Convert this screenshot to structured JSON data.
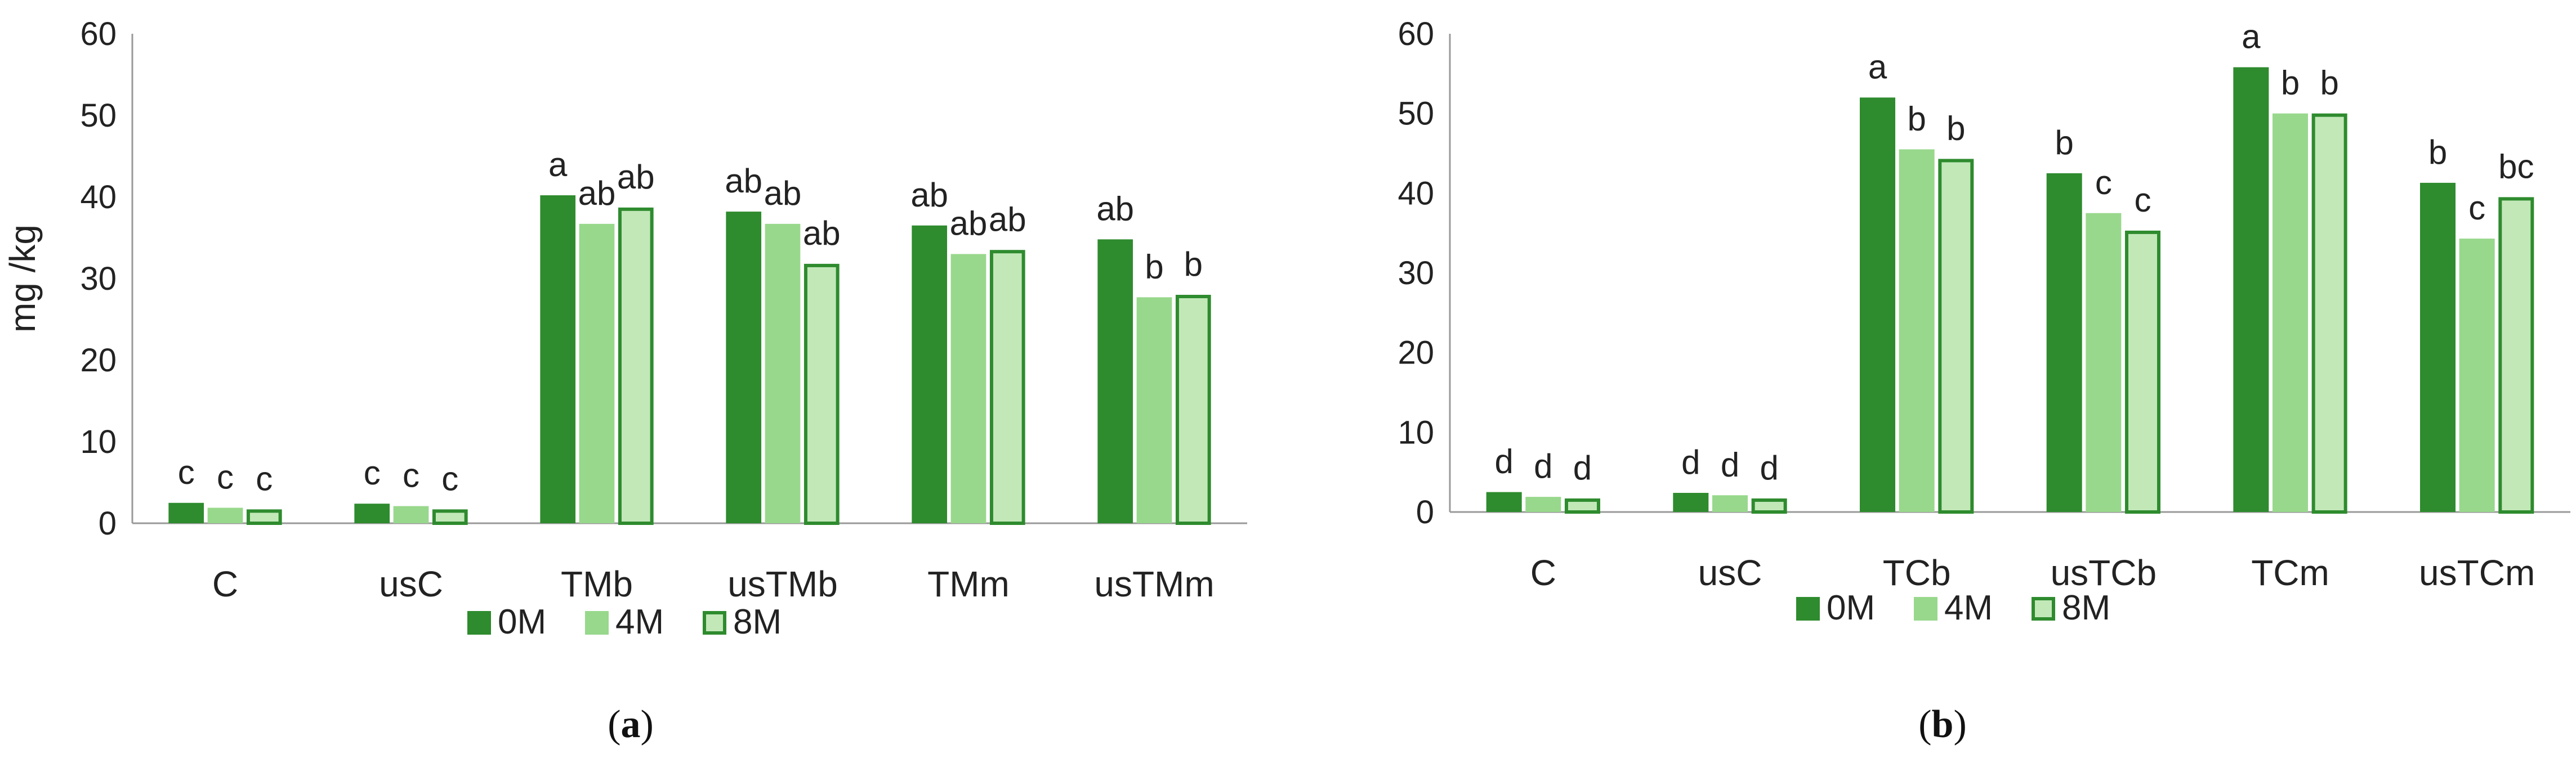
{
  "figure": {
    "captions": [
      "a",
      "b"
    ]
  },
  "legend": {
    "entries": [
      "0M",
      "4M",
      "8M"
    ]
  },
  "colors": {
    "series_0M": "#2e8b2e",
    "series_4M": "#98d88c",
    "series_8M_fill": "#c2e8b8",
    "series_8M_stroke": "#2e8b2e",
    "axis": "#9a9a9a",
    "text": "#222222"
  },
  "chart_data": [
    {
      "type": "bar",
      "panel": "a",
      "ylabel": "mg /kg",
      "xlabel": "",
      "ylim": [
        0,
        60
      ],
      "yticks": [
        0,
        10,
        20,
        30,
        40,
        50,
        60
      ],
      "grid": false,
      "legend_position": "bottom",
      "categories": [
        "C",
        "usC",
        "TMb",
        "usTMb",
        "TMm",
        "usTMm"
      ],
      "series": [
        {
          "name": "0M",
          "values": [
            2.5,
            2.4,
            40.2,
            38.2,
            36.5,
            34.8
          ],
          "letters": [
            "c",
            "c",
            "a",
            "ab",
            "ab",
            "ab"
          ]
        },
        {
          "name": "4M",
          "values": [
            1.9,
            2.1,
            36.7,
            36.7,
            33.0,
            27.7
          ],
          "letters": [
            "c",
            "c",
            "ab",
            "ab",
            "ab",
            "b"
          ]
        },
        {
          "name": "8M",
          "values": [
            1.7,
            1.7,
            38.7,
            31.8,
            33.5,
            28.0
          ],
          "letters": [
            "c",
            "c",
            "ab",
            "ab",
            "ab",
            "b"
          ]
        }
      ]
    },
    {
      "type": "bar",
      "panel": "b",
      "ylabel": "",
      "xlabel": "",
      "ylim": [
        0,
        60
      ],
      "yticks": [
        0,
        10,
        20,
        30,
        40,
        50,
        60
      ],
      "grid": false,
      "legend_position": "bottom",
      "categories": [
        "C",
        "usC",
        "TCb",
        "usTCb",
        "TCm",
        "usTCm"
      ],
      "series": [
        {
          "name": "0M",
          "values": [
            2.5,
            2.4,
            52.0,
            42.5,
            55.8,
            41.3
          ],
          "letters": [
            "d",
            "d",
            "a",
            "b",
            "a",
            "b"
          ]
        },
        {
          "name": "4M",
          "values": [
            1.9,
            2.1,
            45.5,
            37.5,
            50.0,
            34.3
          ],
          "letters": [
            "d",
            "d",
            "b",
            "c",
            "b",
            "c"
          ]
        },
        {
          "name": "8M",
          "values": [
            1.7,
            1.7,
            44.3,
            35.3,
            50.0,
            39.5
          ],
          "letters": [
            "d",
            "d",
            "b",
            "c",
            "b",
            "bc"
          ]
        }
      ]
    }
  ]
}
